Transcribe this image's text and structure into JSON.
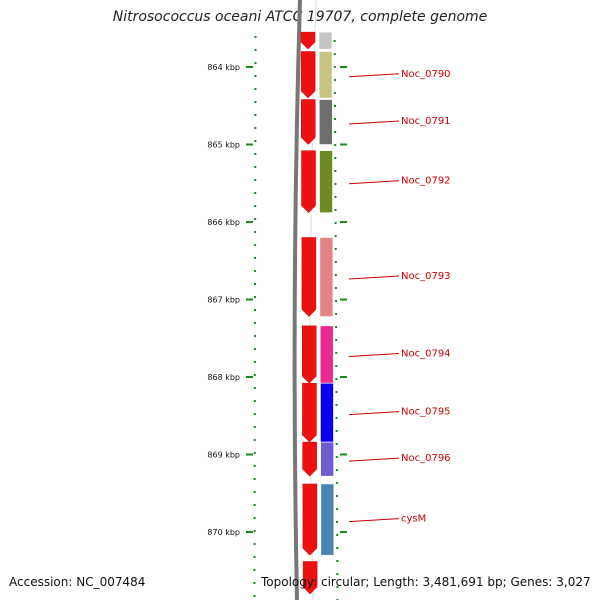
{
  "title": "Nitrosococcus oceani ATCC 19707, complete genome",
  "accession": "Accession: NC_007484",
  "topology_info": "Topology: circular; Length: 3,481,691 bp; Genes: 3,027",
  "axis_ticks": [
    "864 kbp",
    "865 kbp",
    "866 kbp",
    "867 kbp",
    "868 kbp",
    "869 kbp",
    "870 kbp"
  ],
  "genes": [
    {
      "label": "",
      "color": "#c4c4c4",
      "start_kbp": 863.55,
      "end_kbp": 863.77
    },
    {
      "label": "Noc_0790",
      "color": "#c8c482",
      "start_kbp": 863.8,
      "end_kbp": 864.4
    },
    {
      "label": "Noc_0791",
      "color": "#6e6e6e",
      "start_kbp": 864.42,
      "end_kbp": 865.0
    },
    {
      "label": "Noc_0792",
      "color": "#6e8a23",
      "start_kbp": 865.08,
      "end_kbp": 865.88
    },
    {
      "label": "Noc_0793",
      "color": "#e38383",
      "start_kbp": 866.2,
      "end_kbp": 867.22
    },
    {
      "label": "Noc_0794",
      "color": "#ea2a8e",
      "start_kbp": 867.34,
      "end_kbp": 868.08
    },
    {
      "label": "Noc_0795",
      "color": "#0a00f0",
      "start_kbp": 868.08,
      "end_kbp": 868.84
    },
    {
      "label": "Noc_0796",
      "color": "#6e5cd0",
      "start_kbp": 868.84,
      "end_kbp": 869.28
    },
    {
      "label": "cysM",
      "color": "#4b83b5",
      "start_kbp": 869.38,
      "end_kbp": 870.3
    }
  ],
  "cds_blocks": [
    {
      "start_kbp": 863.55,
      "end_kbp": 863.77
    },
    {
      "start_kbp": 863.8,
      "end_kbp": 864.4
    },
    {
      "start_kbp": 864.42,
      "end_kbp": 865.0
    },
    {
      "start_kbp": 865.08,
      "end_kbp": 865.88
    },
    {
      "start_kbp": 866.2,
      "end_kbp": 867.22
    },
    {
      "start_kbp": 867.34,
      "end_kbp": 868.08
    },
    {
      "start_kbp": 868.08,
      "end_kbp": 868.84
    },
    {
      "start_kbp": 868.84,
      "end_kbp": 869.28
    },
    {
      "start_kbp": 869.38,
      "end_kbp": 870.3
    },
    {
      "start_kbp": 870.38,
      "end_kbp": 870.8
    }
  ],
  "colors": {
    "cds": "#ee1111",
    "tick": "#1a8a1a",
    "label": "#cc0000",
    "backbone": "#777777"
  }
}
